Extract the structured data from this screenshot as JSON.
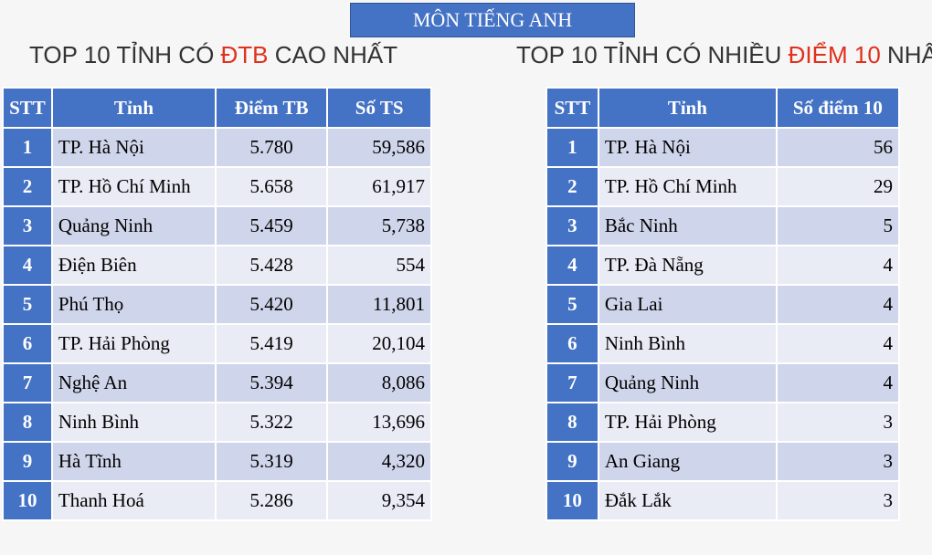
{
  "subject": "MÔN TIẾNG ANH",
  "left": {
    "heading_pre": "TOP 10 TỈNH CÓ ",
    "heading_hl": "ĐTB",
    "heading_post": " CAO NHẤT",
    "columns": [
      "STT",
      "Tỉnh",
      "Điểm TB",
      "Số TS"
    ],
    "rows": [
      {
        "stt": "1",
        "name": "TP. Hà Nội",
        "avg": "5.780",
        "count": "59,586"
      },
      {
        "stt": "2",
        "name": "TP. Hồ Chí Minh",
        "avg": "5.658",
        "count": "61,917"
      },
      {
        "stt": "3",
        "name": "Quảng Ninh",
        "avg": "5.459",
        "count": "5,738"
      },
      {
        "stt": "4",
        "name": "Điện Biên",
        "avg": "5.428",
        "count": "554"
      },
      {
        "stt": "5",
        "name": "Phú Thọ",
        "avg": "5.420",
        "count": "11,801"
      },
      {
        "stt": "6",
        "name": "TP. Hải Phòng",
        "avg": "5.419",
        "count": "20,104"
      },
      {
        "stt": "7",
        "name": "Nghệ An",
        "avg": "5.394",
        "count": "8,086"
      },
      {
        "stt": "8",
        "name": "Ninh Bình",
        "avg": "5.322",
        "count": "13,696"
      },
      {
        "stt": "9",
        "name": "Hà Tĩnh",
        "avg": "5.319",
        "count": "4,320"
      },
      {
        "stt": "10",
        "name": "Thanh Hoá",
        "avg": "5.286",
        "count": "9,354"
      }
    ]
  },
  "right": {
    "heading_pre": "TOP 10 TỈNH CÓ NHIỀU ",
    "heading_hl": "ĐIỂM 10",
    "heading_post": " NHẤT",
    "columns": [
      "STT",
      "Tỉnh",
      "Số điểm 10"
    ],
    "rows": [
      {
        "stt": "1",
        "name": "TP. Hà Nội",
        "tens": "56"
      },
      {
        "stt": "2",
        "name": "TP. Hồ Chí Minh",
        "tens": "29"
      },
      {
        "stt": "3",
        "name": "Bắc Ninh",
        "tens": "5"
      },
      {
        "stt": "4",
        "name": "TP. Đà Nẵng",
        "tens": "4"
      },
      {
        "stt": "5",
        "name": "Gia Lai",
        "tens": "4"
      },
      {
        "stt": "6",
        "name": "Ninh Bình",
        "tens": "4"
      },
      {
        "stt": "7",
        "name": "Quảng Ninh",
        "tens": "4"
      },
      {
        "stt": "8",
        "name": "TP. Hải Phòng",
        "tens": "3"
      },
      {
        "stt": "9",
        "name": "An Giang",
        "tens": "3"
      },
      {
        "stt": "10",
        "name": "Đắk Lắk",
        "tens": "3"
      }
    ]
  }
}
